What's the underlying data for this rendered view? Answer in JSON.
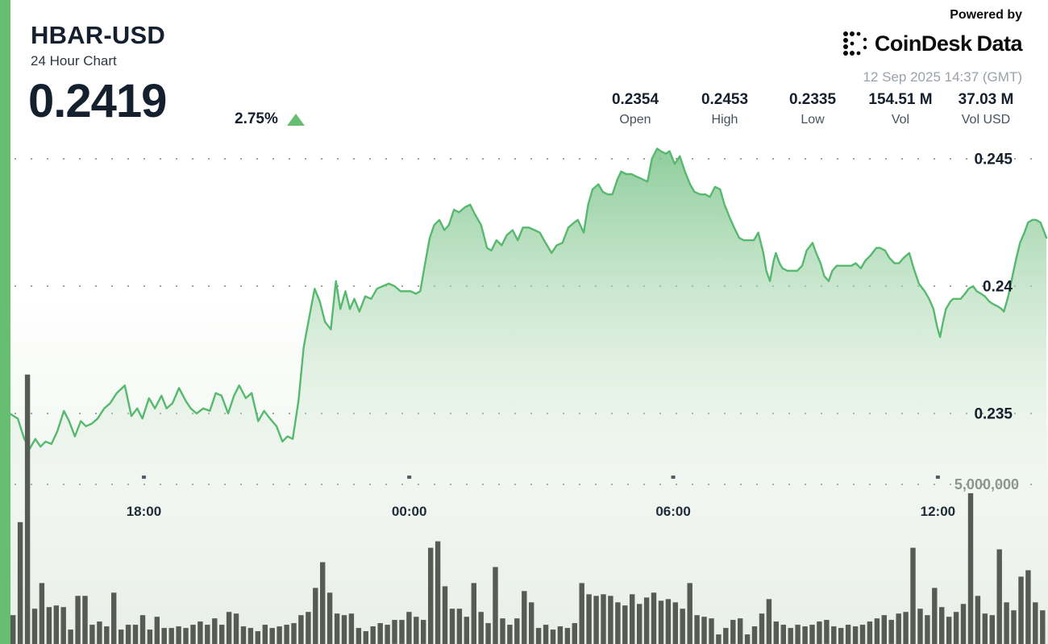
{
  "header": {
    "title": "HBAR-USD",
    "subtitle": "24 Hour Chart",
    "price": "0.2419",
    "change_percent": "2.75%"
  },
  "branding": {
    "powered_by": "Powered by",
    "logo_text_1": "CoinDesk",
    "logo_text_2": "Data",
    "timestamp": "12 Sep 2025 14:37 (GMT)"
  },
  "stats": [
    {
      "label": "Open",
      "value": "0.2354"
    },
    {
      "label": "High",
      "value": "0.2453"
    },
    {
      "label": "Low",
      "value": "0.2335"
    },
    {
      "label": "Vol",
      "value": "154.51 M"
    },
    {
      "label": "Vol USD",
      "value": "37.03 M"
    }
  ],
  "colors": {
    "accent_green": "#67bd71",
    "line_green": "#56b96f",
    "fill_top": "rgba(122,196,138,0.85)",
    "fill_mid": "rgba(176,218,182,0.55)",
    "fill_bottom": "rgba(232,242,232,0.15)",
    "volume_bar": "#565b53",
    "text_navy": "#15202e",
    "axis_label_navy": "#1f2b39",
    "grid_dot": "#9aa29a",
    "tick_dash": "#525c66",
    "volume_label_gray": "#8d958d"
  },
  "chart_data": {
    "type": "area",
    "title": "HBAR-USD 24 hour price with volume",
    "legend": "none",
    "grid": "dotted horizontal lines",
    "y_axis_side": "right",
    "price_range_shown": [
      0.2325,
      0.2455
    ],
    "y_ticks": [
      {
        "label": "0.245",
        "value": 0.245
      },
      {
        "label": "0.24",
        "value": 0.24
      },
      {
        "label": "0.235",
        "value": 0.235
      }
    ],
    "volume_tick": {
      "label": "5,000,000",
      "value_millions": 5
    },
    "x_ticks": [
      {
        "label": "18:00",
        "t_min": 183
      },
      {
        "label": "00:00",
        "t_min": 545
      },
      {
        "label": "06:00",
        "t_min": 905
      },
      {
        "label": "12:00",
        "t_min": 1266
      }
    ],
    "time_span_min": 1414,
    "price_points": [
      [
        0,
        0.235
      ],
      [
        11,
        0.2348
      ],
      [
        20,
        0.234
      ],
      [
        27,
        0.2336
      ],
      [
        35,
        0.234
      ],
      [
        42,
        0.2337
      ],
      [
        49,
        0.2339
      ],
      [
        57,
        0.2338
      ],
      [
        65,
        0.2343
      ],
      [
        74,
        0.2351
      ],
      [
        81,
        0.2347
      ],
      [
        89,
        0.2341
      ],
      [
        97,
        0.2347
      ],
      [
        104,
        0.2345
      ],
      [
        112,
        0.2346
      ],
      [
        120,
        0.2348
      ],
      [
        129,
        0.2352
      ],
      [
        137,
        0.2354
      ],
      [
        146,
        0.2358
      ],
      [
        157,
        0.2361
      ],
      [
        166,
        0.2349
      ],
      [
        174,
        0.2352
      ],
      [
        181,
        0.2348
      ],
      [
        190,
        0.2356
      ],
      [
        198,
        0.2352
      ],
      [
        207,
        0.2357
      ],
      [
        214,
        0.2352
      ],
      [
        222,
        0.2354
      ],
      [
        231,
        0.236
      ],
      [
        240,
        0.2355
      ],
      [
        247,
        0.2352
      ],
      [
        255,
        0.235
      ],
      [
        264,
        0.2352
      ],
      [
        273,
        0.2351
      ],
      [
        281,
        0.2358
      ],
      [
        289,
        0.2357
      ],
      [
        298,
        0.235
      ],
      [
        306,
        0.2357
      ],
      [
        313,
        0.2361
      ],
      [
        322,
        0.2356
      ],
      [
        330,
        0.2358
      ],
      [
        339,
        0.2347
      ],
      [
        347,
        0.2351
      ],
      [
        355,
        0.2348
      ],
      [
        364,
        0.2345
      ],
      [
        372,
        0.2339
      ],
      [
        379,
        0.2341
      ],
      [
        386,
        0.234
      ],
      [
        394,
        0.2355
      ],
      [
        401,
        0.2376
      ],
      [
        408,
        0.2387
      ],
      [
        416,
        0.2399
      ],
      [
        423,
        0.2394
      ],
      [
        430,
        0.2386
      ],
      [
        438,
        0.2383
      ],
      [
        445,
        0.2402
      ],
      [
        451,
        0.2391
      ],
      [
        458,
        0.2398
      ],
      [
        464,
        0.2391
      ],
      [
        470,
        0.2395
      ],
      [
        477,
        0.239
      ],
      [
        485,
        0.2396
      ],
      [
        493,
        0.2395
      ],
      [
        501,
        0.2399
      ],
      [
        509,
        0.24
      ],
      [
        517,
        0.2401
      ],
      [
        525,
        0.24
      ],
      [
        533,
        0.2398
      ],
      [
        540,
        0.2398
      ],
      [
        547,
        0.2398
      ],
      [
        554,
        0.2397
      ],
      [
        560,
        0.2398
      ],
      [
        566,
        0.2408
      ],
      [
        573,
        0.2419
      ],
      [
        579,
        0.2424
      ],
      [
        586,
        0.2426
      ],
      [
        593,
        0.2422
      ],
      [
        599,
        0.2424
      ],
      [
        606,
        0.243
      ],
      [
        613,
        0.2429
      ],
      [
        621,
        0.2431
      ],
      [
        628,
        0.2432
      ],
      [
        635,
        0.2428
      ],
      [
        643,
        0.2424
      ],
      [
        651,
        0.2415
      ],
      [
        657,
        0.2414
      ],
      [
        664,
        0.2418
      ],
      [
        671,
        0.2416
      ],
      [
        678,
        0.242
      ],
      [
        686,
        0.2422
      ],
      [
        693,
        0.2418
      ],
      [
        700,
        0.2423
      ],
      [
        708,
        0.2423
      ],
      [
        716,
        0.2422
      ],
      [
        723,
        0.2421
      ],
      [
        731,
        0.2417
      ],
      [
        739,
        0.2413
      ],
      [
        746,
        0.2416
      ],
      [
        754,
        0.2417
      ],
      [
        762,
        0.2423
      ],
      [
        770,
        0.2425
      ],
      [
        775,
        0.2426
      ],
      [
        783,
        0.2421
      ],
      [
        789,
        0.2432
      ],
      [
        795,
        0.2438
      ],
      [
        803,
        0.244
      ],
      [
        809,
        0.2437
      ],
      [
        816,
        0.2436
      ],
      [
        822,
        0.2436
      ],
      [
        829,
        0.2442
      ],
      [
        834,
        0.2445
      ],
      [
        841,
        0.2444
      ],
      [
        848,
        0.2444
      ],
      [
        855,
        0.2443
      ],
      [
        863,
        0.2442
      ],
      [
        870,
        0.2441
      ],
      [
        876,
        0.245
      ],
      [
        883,
        0.2454
      ],
      [
        888,
        0.2453
      ],
      [
        895,
        0.2452
      ],
      [
        900,
        0.2453
      ],
      [
        907,
        0.2448
      ],
      [
        914,
        0.2451
      ],
      [
        921,
        0.2445
      ],
      [
        928,
        0.244
      ],
      [
        934,
        0.2437
      ],
      [
        942,
        0.2436
      ],
      [
        949,
        0.2436
      ],
      [
        955,
        0.2435
      ],
      [
        962,
        0.2439
      ],
      [
        969,
        0.2438
      ],
      [
        975,
        0.2432
      ],
      [
        982,
        0.2427
      ],
      [
        988,
        0.2423
      ],
      [
        995,
        0.2419
      ],
      [
        1001,
        0.2418
      ],
      [
        1008,
        0.2418
      ],
      [
        1015,
        0.2418
      ],
      [
        1021,
        0.2421
      ],
      [
        1028,
        0.2413
      ],
      [
        1032,
        0.2406
      ],
      [
        1037,
        0.2402
      ],
      [
        1042,
        0.241
      ],
      [
        1045,
        0.2413
      ],
      [
        1050,
        0.2409
      ],
      [
        1054,
        0.2407
      ],
      [
        1061,
        0.2406
      ],
      [
        1067,
        0.2406
      ],
      [
        1074,
        0.2406
      ],
      [
        1081,
        0.2408
      ],
      [
        1087,
        0.2414
      ],
      [
        1095,
        0.2417
      ],
      [
        1100,
        0.2413
      ],
      [
        1106,
        0.2409
      ],
      [
        1111,
        0.2404
      ],
      [
        1117,
        0.2402
      ],
      [
        1122,
        0.2406
      ],
      [
        1128,
        0.2408
      ],
      [
        1134,
        0.2408
      ],
      [
        1141,
        0.2408
      ],
      [
        1148,
        0.2408
      ],
      [
        1154,
        0.2409
      ],
      [
        1161,
        0.2407
      ],
      [
        1167,
        0.241
      ],
      [
        1174,
        0.2412
      ],
      [
        1182,
        0.2415
      ],
      [
        1187,
        0.2415
      ],
      [
        1194,
        0.2414
      ],
      [
        1200,
        0.2411
      ],
      [
        1207,
        0.2409
      ],
      [
        1213,
        0.2409
      ],
      [
        1219,
        0.2411
      ],
      [
        1227,
        0.2413
      ],
      [
        1233,
        0.2407
      ],
      [
        1240,
        0.2401
      ],
      [
        1248,
        0.2398
      ],
      [
        1254,
        0.2395
      ],
      [
        1260,
        0.2391
      ],
      [
        1265,
        0.2384
      ],
      [
        1269,
        0.238
      ],
      [
        1273,
        0.2386
      ],
      [
        1277,
        0.2391
      ],
      [
        1283,
        0.2394
      ],
      [
        1287,
        0.2395
      ],
      [
        1293,
        0.2395
      ],
      [
        1297,
        0.2395
      ],
      [
        1303,
        0.2397
      ],
      [
        1308,
        0.2399
      ],
      [
        1314,
        0.24
      ],
      [
        1319,
        0.2398
      ],
      [
        1325,
        0.2397
      ],
      [
        1330,
        0.2396
      ],
      [
        1336,
        0.2394
      ],
      [
        1341,
        0.2393
      ],
      [
        1348,
        0.2392
      ],
      [
        1353,
        0.2391
      ],
      [
        1356,
        0.239
      ],
      [
        1362,
        0.2396
      ],
      [
        1367,
        0.2403
      ],
      [
        1373,
        0.2411
      ],
      [
        1378,
        0.2417
      ],
      [
        1384,
        0.2421
      ],
      [
        1389,
        0.2425
      ],
      [
        1395,
        0.2426
      ],
      [
        1400,
        0.2426
      ],
      [
        1406,
        0.2425
      ],
      [
        1410,
        0.2422
      ],
      [
        1414,
        0.2419
      ]
    ],
    "volume_bar_interval_min": 10,
    "volume_bars_millions": [
      0.9,
      3.8,
      8.4,
      1.1,
      1.9,
      1.15,
      1.2,
      1.15,
      0.45,
      1.5,
      1.5,
      0.6,
      0.7,
      0.55,
      1.6,
      0.45,
      0.6,
      0.6,
      0.9,
      0.45,
      0.85,
      0.5,
      0.5,
      0.55,
      0.5,
      0.6,
      0.7,
      0.6,
      0.8,
      0.6,
      1.0,
      0.95,
      0.55,
      0.5,
      0.4,
      0.6,
      0.5,
      0.55,
      0.6,
      0.65,
      0.9,
      1.0,
      1.75,
      2.55,
      1.6,
      0.95,
      0.9,
      0.95,
      0.5,
      0.4,
      0.55,
      0.65,
      0.6,
      0.75,
      0.75,
      1.0,
      0.85,
      0.75,
      3.0,
      3.2,
      1.8,
      1.1,
      1.1,
      0.85,
      1.9,
      1.0,
      0.65,
      2.4,
      0.8,
      0.6,
      0.8,
      1.65,
      1.3,
      0.5,
      0.6,
      0.45,
      0.55,
      0.5,
      0.65,
      1.9,
      1.55,
      1.5,
      1.55,
      1.5,
      1.3,
      1.2,
      1.55,
      1.25,
      1.45,
      1.6,
      1.35,
      1.4,
      1.3,
      1.1,
      1.9,
      0.9,
      0.85,
      0.8,
      0.3,
      0.5,
      0.75,
      0.8,
      0.3,
      0.55,
      0.95,
      1.4,
      0.7,
      0.6,
      0.5,
      0.6,
      0.55,
      0.6,
      0.7,
      0.75,
      0.55,
      0.5,
      0.6,
      0.55,
      0.6,
      0.7,
      0.8,
      0.9,
      0.75,
      0.95,
      1.0,
      3.0,
      1.1,
      0.9,
      1.75,
      1.15,
      0.85,
      1.0,
      1.25,
      4.7,
      1.5,
      0.95,
      0.9,
      2.95,
      1.3,
      1.05,
      2.1,
      2.3,
      1.3,
      1.05
    ]
  }
}
